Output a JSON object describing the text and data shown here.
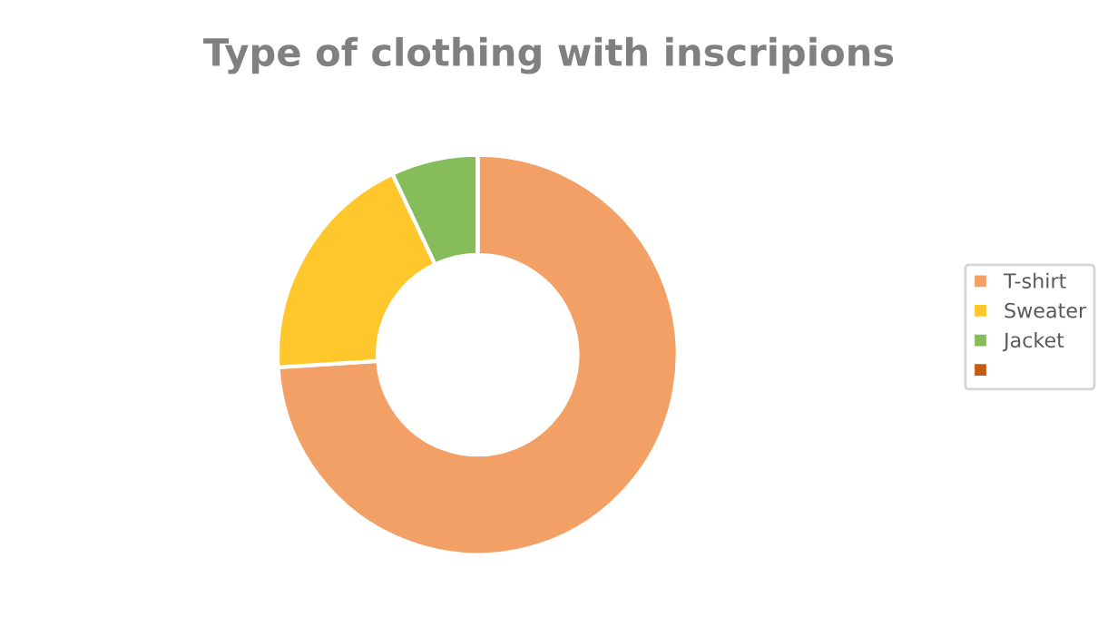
{
  "chart_data": {
    "type": "donut",
    "title": "Type of clothing with inscripions",
    "categories": [
      "T-shirt",
      "Sweater",
      "Jacket",
      null
    ],
    "values": [
      74,
      19,
      7,
      0
    ],
    "colors": [
      "#f2a066",
      "#ffc72c",
      "#86bd5a",
      "#c55a11"
    ],
    "legend": "right"
  }
}
